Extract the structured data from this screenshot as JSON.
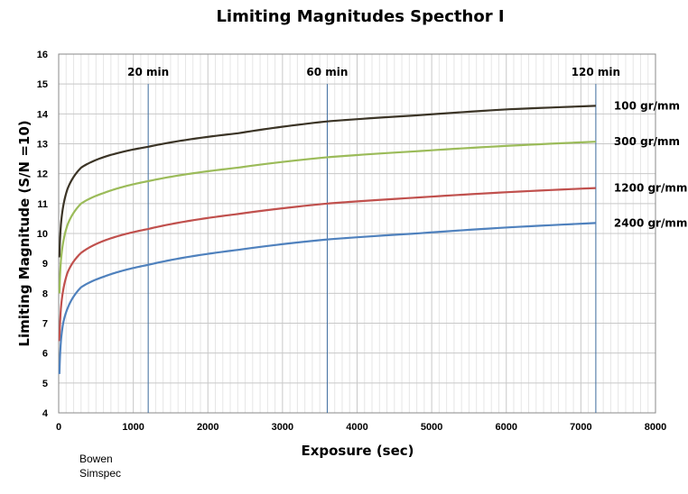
{
  "chart_data": {
    "type": "line",
    "title": "Limiting Magnitudes Specthor I",
    "xlabel": "Exposure (sec)",
    "ylabel": "Limiting Magnitude (S/N =10)",
    "xlim": [
      0,
      8000
    ],
    "ylim": [
      4,
      16
    ],
    "x_ticks": [
      0,
      1000,
      2000,
      3000,
      4000,
      5000,
      6000,
      7000,
      8000
    ],
    "y_ticks": [
      4,
      5,
      6,
      7,
      8,
      9,
      10,
      11,
      12,
      13,
      14,
      15,
      16
    ],
    "grid": true,
    "x_minor_step": 100,
    "markers": [
      {
        "label": "20 min",
        "x": 1200
      },
      {
        "label": "60 min",
        "x": 3600
      },
      {
        "label": "120 min",
        "x": 7200
      }
    ],
    "series": [
      {
        "name": "100 gr/mm",
        "color": "#3b3426",
        "x": [
          10,
          30,
          60,
          120,
          300,
          600,
          1200,
          2400,
          3600,
          4800,
          6000,
          7200
        ],
        "y": [
          9.2,
          10.3,
          10.9,
          11.5,
          12.2,
          12.55,
          12.9,
          13.35,
          13.75,
          13.95,
          14.15,
          14.27
        ]
      },
      {
        "name": "300 gr/mm",
        "color": "#9bbb59",
        "x": [
          10,
          30,
          60,
          120,
          300,
          600,
          1200,
          2400,
          3600,
          4800,
          6000,
          7200
        ],
        "y": [
          8.0,
          9.1,
          9.7,
          10.3,
          11.0,
          11.35,
          11.75,
          12.2,
          12.55,
          12.75,
          12.93,
          13.07
        ]
      },
      {
        "name": "1200 gr/mm",
        "color": "#c0504d",
        "x": [
          10,
          30,
          60,
          120,
          300,
          600,
          1200,
          2400,
          3600,
          4800,
          6000,
          7200
        ],
        "y": [
          6.4,
          7.5,
          8.1,
          8.7,
          9.35,
          9.75,
          10.15,
          10.65,
          11.0,
          11.2,
          11.38,
          11.52
        ]
      },
      {
        "name": "2400 gr/mm",
        "color": "#4f81bd",
        "x": [
          10,
          30,
          60,
          120,
          300,
          600,
          1200,
          2400,
          3600,
          4800,
          6000,
          7200
        ],
        "y": [
          5.3,
          6.4,
          7.0,
          7.5,
          8.2,
          8.55,
          8.95,
          9.45,
          9.8,
          10.0,
          10.2,
          10.35
        ]
      }
    ]
  },
  "credit": {
    "line1": "Bowen",
    "line2": "Simspec"
  }
}
